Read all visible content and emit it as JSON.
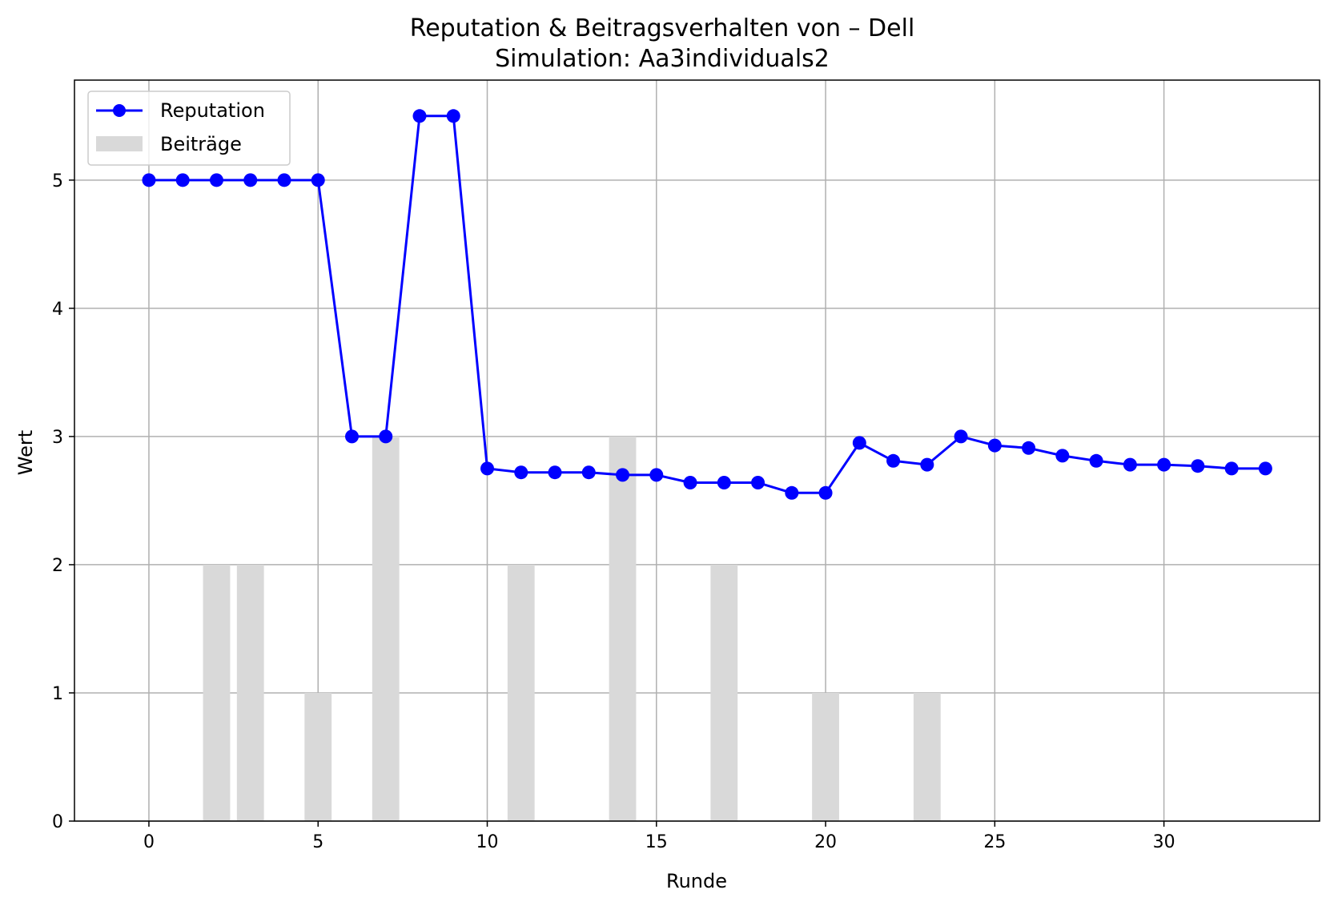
{
  "chart_data": {
    "type": "line",
    "title": "Reputation & Beitragsverhalten von – Dell",
    "subtitle": "Simulation: Aa3individuals2",
    "xlabel": "Runde",
    "ylabel": "Wert",
    "xlim": [
      -2.2,
      34.6
    ],
    "ylim": [
      0,
      5.78
    ],
    "xticks": [
      0,
      5,
      10,
      15,
      20,
      25,
      30
    ],
    "yticks": [
      0,
      1,
      2,
      3,
      4,
      5
    ],
    "grid": true,
    "legend_position": "upper-left",
    "series": [
      {
        "name": "Reputation",
        "type": "line",
        "marker": "circle",
        "color": "#0000ff",
        "x": [
          0,
          1,
          2,
          3,
          4,
          5,
          6,
          7,
          8,
          9,
          10,
          11,
          12,
          13,
          14,
          15,
          16,
          17,
          18,
          19,
          20,
          21,
          22,
          23,
          24,
          25,
          26,
          27,
          28,
          29,
          30,
          31,
          32,
          33
        ],
        "values": [
          5,
          5,
          5,
          5,
          5,
          5,
          3,
          3,
          5.5,
          5.5,
          2.75,
          2.72,
          2.72,
          2.72,
          2.7,
          2.7,
          2.64,
          2.64,
          2.64,
          2.56,
          2.56,
          2.95,
          2.81,
          2.78,
          3.0,
          2.93,
          2.91,
          2.85,
          2.81,
          2.78,
          2.78,
          2.77,
          2.75,
          2.75
        ]
      },
      {
        "name": "Beiträge",
        "type": "bar",
        "color": "#d9d9d9",
        "x": [
          2,
          3,
          5,
          7,
          11,
          14,
          17,
          20,
          23
        ],
        "values": [
          2,
          2,
          1,
          3,
          2,
          3,
          2,
          1,
          1
        ]
      }
    ]
  }
}
